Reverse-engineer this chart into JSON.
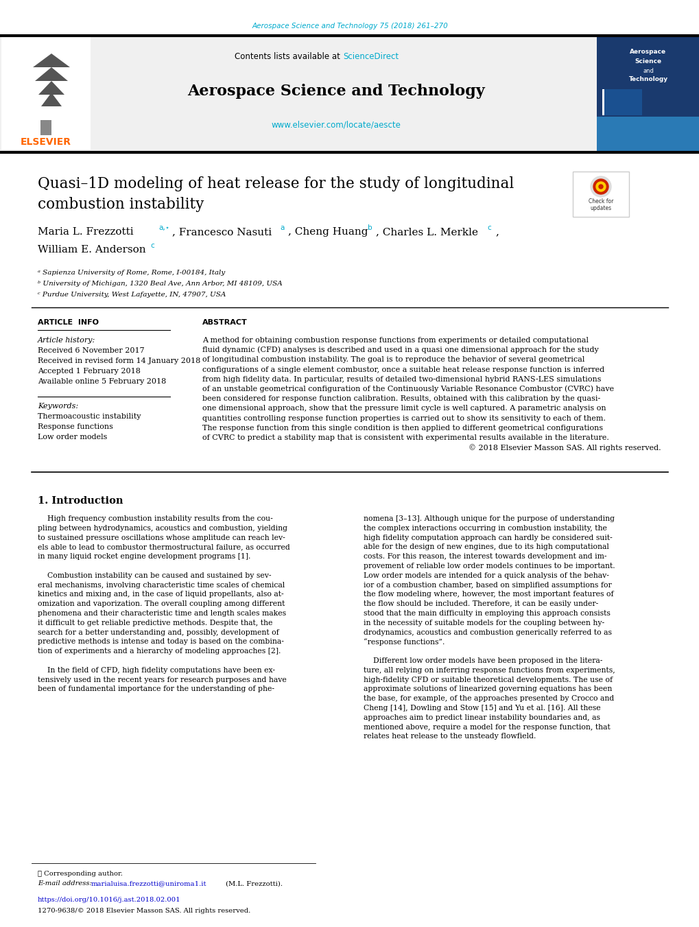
{
  "bg_color": "#ffffff",
  "top_journal_ref": "Aerospace Science and Technology 75 (2018) 261–270",
  "top_journal_ref_color": "#00aacc",
  "header_bg": "#f0f0f0",
  "header_elsevier_text": "ELSEVIER",
  "header_elsevier_color": "#ff6600",
  "header_journal_title": "Aerospace Science and Technology",
  "header_contents_text": "Contents lists available at ",
  "header_sciencedirect": "ScienceDirect",
  "header_sciencedirect_color": "#00aacc",
  "header_url": "www.elsevier.com/locate/aescte",
  "header_url_color": "#00aacc",
  "article_info_title": "ARTICLE  INFO",
  "abstract_title": "ABSTRACT",
  "article_history_label": "Article history:",
  "received": "Received 6 November 2017",
  "revised": "Received in revised form 14 January 2018",
  "accepted": "Accepted 1 February 2018",
  "available": "Available online 5 February 2018",
  "keywords_label": "Keywords:",
  "keyword1": "Thermoacoustic instability",
  "keyword2": "Response functions",
  "keyword3": "Low order models",
  "section1_title": "1. Introduction",
  "footer_note": "⋆ Corresponding author.",
  "footer_email_label": "E-mail address: ",
  "footer_email": "marialuisa.frezzotti@uniroma1.it",
  "footer_email_color": "#0000cc",
  "footer_email_end": " (M.L. Frezzotti).",
  "footer_doi": "https://doi.org/10.1016/j.ast.2018.02.001",
  "footer_doi_color": "#0000cc",
  "footer_rights": "1270-9638/© 2018 Elsevier Masson SAS. All rights reserved.",
  "sidebar_bg": "#1a3a6e",
  "sidebar_blue": "#2a7ab5",
  "affil_a": "ᵃ Sapienza University of Rome, Rome, I-00184, Italy",
  "affil_b": "ᵇ University of Michigan, 1320 Beal Ave, Ann Arbor, MI 48109, USA",
  "affil_c": "ᶜ Purdue University, West Lafayette, IN, 47907, USA",
  "abstract_lines": [
    "A method for obtaining combustion response functions from experiments or detailed computational",
    "fluid dynamic (CFD) analyses is described and used in a quasi one dimensional approach for the study",
    "of longitudinal combustion instability. The goal is to reproduce the behavior of several geometrical",
    "configurations of a single element combustor, once a suitable heat release response function is inferred",
    "from high fidelity data. In particular, results of detailed two-dimensional hybrid RANS-LES simulations",
    "of an unstable geometrical configuration of the Continuously Variable Resonance Combustor (CVRC) have",
    "been considered for response function calibration. Results, obtained with this calibration by the quasi-",
    "one dimensional approach, show that the pressure limit cycle is well captured. A parametric analysis on",
    "quantities controlling response function properties is carried out to show its sensitivity to each of them.",
    "The response function from this single condition is then applied to different geometrical configurations",
    "of CVRC to predict a stability map that is consistent with experimental results available in the literature.",
    "© 2018 Elsevier Masson SAS. All rights reserved."
  ],
  "intro_col1_lines": [
    "    High frequency combustion instability results from the cou-",
    "pling between hydrodynamics, acoustics and combustion, yielding",
    "to sustained pressure oscillations whose amplitude can reach lev-",
    "els able to lead to combustor thermostructural failure, as occurred",
    "in many liquid rocket engine development programs [1].",
    "",
    "    Combustion instability can be caused and sustained by sev-",
    "eral mechanisms, involving characteristic time scales of chemical",
    "kinetics and mixing and, in the case of liquid propellants, also at-",
    "omization and vaporization. The overall coupling among different",
    "phenomena and their characteristic time and length scales makes",
    "it difficult to get reliable predictive methods. Despite that, the",
    "search for a better understanding and, possibly, development of",
    "predictive methods is intense and today is based on the combina-",
    "tion of experiments and a hierarchy of modeling approaches [2].",
    "",
    "    In the field of CFD, high fidelity computations have been ex-",
    "tensively used in the recent years for research purposes and have",
    "been of fundamental importance for the understanding of phe-"
  ],
  "intro_col2_lines": [
    "nomena [3–13]. Although unique for the purpose of understanding",
    "the complex interactions occurring in combustion instability, the",
    "high fidelity computation approach can hardly be considered suit-",
    "able for the design of new engines, due to its high computational",
    "costs. For this reason, the interest towards development and im-",
    "provement of reliable low order models continues to be important.",
    "Low order models are intended for a quick analysis of the behav-",
    "ior of a combustion chamber, based on simplified assumptions for",
    "the flow modeling where, however, the most important features of",
    "the flow should be included. Therefore, it can be easily under-",
    "stood that the main difficulty in employing this approach consists",
    "in the necessity of suitable models for the coupling between hy-",
    "drodynamics, acoustics and combustion generically referred to as",
    "“response functions”.",
    "",
    "    Different low order models have been proposed in the litera-",
    "ture, all relying on inferring response functions from experiments,",
    "high-fidelity CFD or suitable theoretical developments. The use of",
    "approximate solutions of linearized governing equations has been",
    "the base, for example, of the approaches presented by Crocco and",
    "Cheng [14], Dowling and Stow [15] and Yu et al. [16]. All these",
    "approaches aim to predict linear instability boundaries and, as",
    "mentioned above, require a model for the response function, that",
    "relates heat release to the unsteady flowfield."
  ]
}
